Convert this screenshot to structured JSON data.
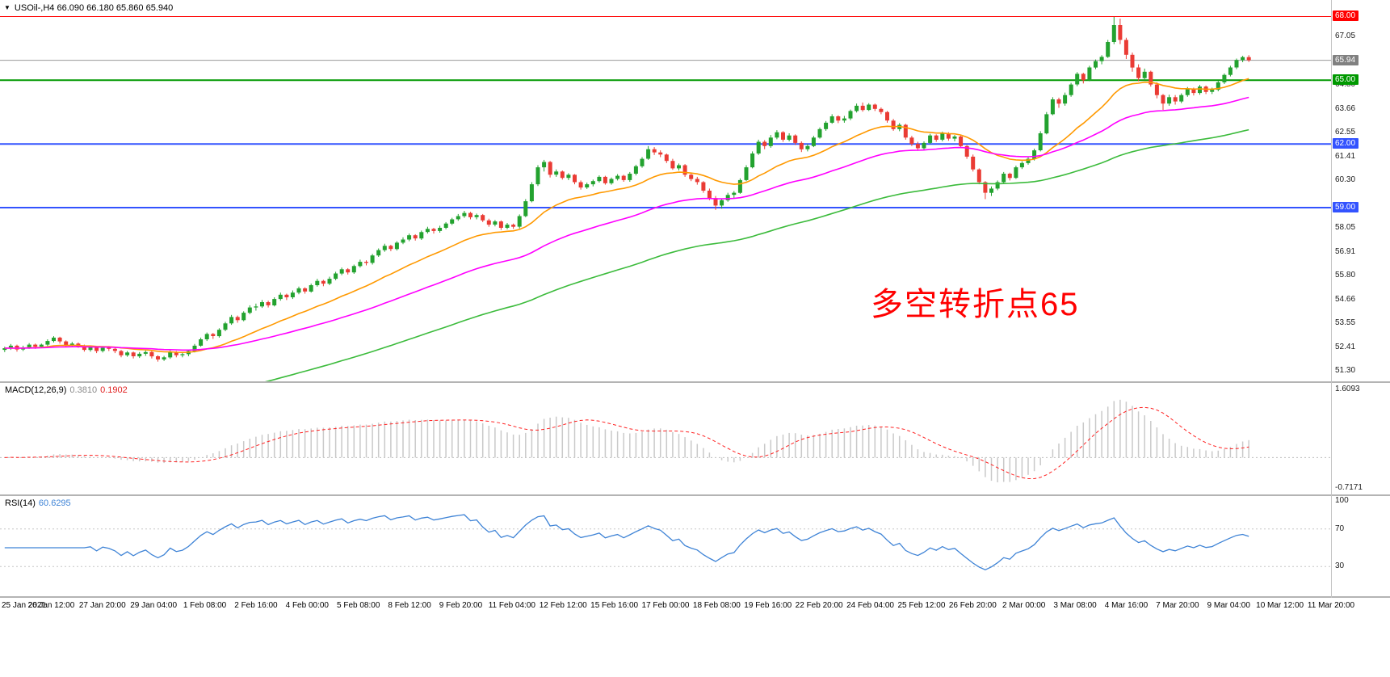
{
  "window": {
    "collapse_icon": "▼"
  },
  "header": {
    "symbol_title": "USOil-,H4 66.090 66.180 65.860 65.940"
  },
  "main_chart": {
    "annotation_text": "多空转折点65",
    "annotation_color": "#FF0000",
    "y_min": 51.05,
    "y_max": 68.55,
    "ticks": [
      {
        "v": 67.05,
        "t": "67.05"
      },
      {
        "v": 64.8,
        "t": "64.80"
      },
      {
        "v": 63.66,
        "t": "63.66"
      },
      {
        "v": 62.55,
        "t": "62.55"
      },
      {
        "v": 61.41,
        "t": "61.41"
      },
      {
        "v": 60.3,
        "t": "60.30"
      },
      {
        "v": 58.05,
        "t": "58.05"
      },
      {
        "v": 56.91,
        "t": "56.91"
      },
      {
        "v": 55.8,
        "t": "55.80"
      },
      {
        "v": 54.66,
        "t": "54.66"
      },
      {
        "v": 53.55,
        "t": "53.55"
      },
      {
        "v": 52.41,
        "t": "52.41"
      },
      {
        "v": 51.3,
        "t": "51.30"
      }
    ],
    "hlines": [
      {
        "value": 68.0,
        "label": "68.00",
        "color": "#FF0000",
        "width": 1
      },
      {
        "value": 65.0,
        "label": "65.00",
        "color": "#009900",
        "width": 2
      },
      {
        "value": 62.0,
        "label": "62.00",
        "color": "#3353FF",
        "width": 2
      },
      {
        "value": 59.0,
        "label": "59.00",
        "color": "#3353FF",
        "width": 2
      }
    ],
    "bid": {
      "v": 65.94,
      "t": "65.94",
      "line_color": "#9a9a9a",
      "bg": "#808080"
    },
    "candle_colors": {
      "bull": "#23a22f",
      "bear": "#ea3b34"
    },
    "moving_averages": [
      {
        "name": "ma-fast",
        "period": 20,
        "seed": null,
        "color": "#ff9900"
      },
      {
        "name": "ma-mid",
        "period": 50,
        "seed": null,
        "color": "#ff00ff"
      },
      {
        "name": "ma-slow",
        "period": 100,
        "seed": 48.0,
        "color": "#3cbb3c"
      }
    ]
  },
  "macd_panel": {
    "label": "MACD(12,26,9)",
    "main_value": "0.3810",
    "signal_value": "0.1902",
    "range_max": 1.6093,
    "range_min": -0.7171,
    "max_label": "1.6093",
    "min_label": "-0.7171",
    "histogram_color": "#c9c9c9",
    "signal_color": "#ff2222",
    "params": {
      "fast": 12,
      "slow": 26,
      "signal": 9
    }
  },
  "rsi_panel": {
    "label": "RSI(14)",
    "value": "60.6295",
    "period": 14,
    "line_color": "#3e83d6",
    "levels": [
      {
        "v": 100,
        "t": "100",
        "line": false
      },
      {
        "v": 70,
        "t": "70",
        "line": true
      },
      {
        "v": 30,
        "t": "30",
        "line": true
      }
    ]
  },
  "time_axis": {
    "labels": [
      "25 Jan 2021",
      "26 Jan 12:00",
      "27 Jan 20:00",
      "29 Jan 04:00",
      "1 Feb 08:00",
      "2 Feb 16:00",
      "4 Feb 00:00",
      "5 Feb 08:00",
      "8 Feb 12:00",
      "9 Feb 20:00",
      "11 Feb 04:00",
      "12 Feb 12:00",
      "15 Feb 16:00",
      "17 Feb 00:00",
      "18 Feb 08:00",
      "19 Feb 16:00",
      "22 Feb 20:00",
      "24 Feb 04:00",
      "25 Feb 12:00",
      "26 Feb 20:00",
      "2 Mar 00:00",
      "3 Mar 08:00",
      "4 Mar 16:00",
      "7 Mar 20:00",
      "9 Mar 04:00",
      "10 Mar 12:00",
      "11 Mar 20:00"
    ]
  },
  "chart_data": {
    "type": "candlestick",
    "symbol": "USOil-",
    "timeframe": "H4",
    "title": "USOil-,H4 66.090 66.180 65.860 65.940",
    "current_bar": {
      "open": 66.09,
      "high": 66.18,
      "low": 65.86,
      "close": 65.94
    },
    "visible_range": {
      "price_low": 51.3,
      "price_high": 68.0,
      "time_start": "25 Jan 2021",
      "time_end": "11 Mar 20:00"
    },
    "horizontal_levels": [
      68.0,
      65.0,
      62.0,
      59.0
    ],
    "indicators": [
      {
        "name": "MACD",
        "params": [
          12,
          26,
          9
        ],
        "values": [
          0.381,
          0.1902
        ],
        "scale": [
          1.6093,
          -0.7171
        ]
      },
      {
        "name": "RSI",
        "params": [
          14
        ],
        "value": 60.6295,
        "levels": [
          30,
          70
        ]
      }
    ],
    "annotation": "多空转折点65",
    "candle_format": [
      "open",
      "high",
      "low",
      "close"
    ],
    "candles": [
      [
        52.3,
        52.45,
        52.2,
        52.38
      ],
      [
        52.38,
        52.58,
        52.3,
        52.5
      ],
      [
        52.5,
        52.55,
        52.22,
        52.32
      ],
      [
        52.32,
        52.5,
        52.25,
        52.42
      ],
      [
        52.42,
        52.62,
        52.35,
        52.55
      ],
      [
        52.55,
        52.6,
        52.35,
        52.45
      ],
      [
        52.45,
        52.6,
        52.38,
        52.55
      ],
      [
        52.55,
        52.8,
        52.48,
        52.72
      ],
      [
        52.72,
        52.95,
        52.65,
        52.88
      ],
      [
        52.88,
        52.92,
        52.6,
        52.7
      ],
      [
        52.7,
        52.75,
        52.42,
        52.52
      ],
      [
        52.52,
        52.68,
        52.45,
        52.6
      ],
      [
        52.6,
        52.65,
        52.4,
        52.48
      ],
      [
        52.48,
        52.55,
        52.22,
        52.3
      ],
      [
        52.3,
        52.5,
        52.22,
        52.42
      ],
      [
        52.42,
        52.45,
        52.15,
        52.25
      ],
      [
        52.25,
        52.48,
        52.18,
        52.4
      ],
      [
        52.4,
        52.48,
        52.25,
        52.35
      ],
      [
        52.35,
        52.42,
        52.15,
        52.25
      ],
      [
        52.25,
        52.3,
        51.95,
        52.05
      ],
      [
        52.05,
        52.25,
        51.98,
        52.18
      ],
      [
        52.18,
        52.22,
        51.9,
        52.0
      ],
      [
        52.0,
        52.2,
        51.92,
        52.12
      ],
      [
        52.12,
        52.28,
        52.02,
        52.2
      ],
      [
        52.2,
        52.25,
        51.9,
        52.0
      ],
      [
        52.0,
        52.05,
        51.75,
        51.85
      ],
      [
        51.85,
        52.02,
        51.78,
        51.95
      ],
      [
        51.95,
        52.28,
        51.88,
        52.2
      ],
      [
        52.2,
        52.25,
        51.95,
        52.05
      ],
      [
        52.05,
        52.18,
        51.95,
        52.1
      ],
      [
        52.1,
        52.3,
        52.0,
        52.25
      ],
      [
        52.25,
        52.58,
        52.18,
        52.5
      ],
      [
        52.5,
        52.88,
        52.45,
        52.8
      ],
      [
        52.8,
        53.12,
        52.72,
        53.05
      ],
      [
        53.05,
        53.1,
        52.82,
        52.95
      ],
      [
        52.95,
        53.32,
        52.88,
        53.25
      ],
      [
        53.25,
        53.62,
        53.18,
        53.55
      ],
      [
        53.55,
        53.95,
        53.48,
        53.85
      ],
      [
        53.85,
        53.92,
        53.58,
        53.7
      ],
      [
        53.7,
        54.12,
        53.65,
        54.05
      ],
      [
        54.05,
        54.4,
        53.98,
        54.3
      ],
      [
        54.3,
        54.48,
        54.15,
        54.35
      ],
      [
        54.35,
        54.65,
        54.28,
        54.55
      ],
      [
        54.55,
        54.62,
        54.3,
        54.4
      ],
      [
        54.4,
        54.78,
        54.35,
        54.7
      ],
      [
        54.7,
        55.0,
        54.62,
        54.9
      ],
      [
        54.9,
        54.95,
        54.65,
        54.78
      ],
      [
        54.78,
        55.1,
        54.7,
        55.0
      ],
      [
        55.0,
        55.28,
        54.92,
        55.2
      ],
      [
        55.2,
        55.25,
        54.95,
        55.05
      ],
      [
        55.05,
        55.42,
        55.0,
        55.35
      ],
      [
        55.35,
        55.65,
        55.28,
        55.55
      ],
      [
        55.55,
        55.6,
        55.3,
        55.42
      ],
      [
        55.42,
        55.75,
        55.35,
        55.65
      ],
      [
        55.65,
        55.98,
        55.58,
        55.9
      ],
      [
        55.9,
        56.18,
        55.82,
        56.1
      ],
      [
        56.1,
        56.15,
        55.85,
        55.95
      ],
      [
        55.95,
        56.32,
        55.88,
        56.25
      ],
      [
        56.25,
        56.55,
        56.18,
        56.45
      ],
      [
        56.45,
        56.52,
        56.28,
        56.4
      ],
      [
        56.4,
        56.82,
        56.32,
        56.75
      ],
      [
        56.75,
        57.08,
        56.68,
        57.0
      ],
      [
        57.0,
        57.3,
        56.92,
        57.2
      ],
      [
        57.2,
        57.25,
        56.95,
        57.05
      ],
      [
        57.05,
        57.42,
        56.98,
        57.35
      ],
      [
        57.35,
        57.6,
        57.28,
        57.5
      ],
      [
        57.5,
        57.78,
        57.42,
        57.7
      ],
      [
        57.7,
        57.75,
        57.45,
        57.55
      ],
      [
        57.55,
        57.92,
        57.48,
        57.85
      ],
      [
        57.85,
        58.1,
        57.78,
        58.0
      ],
      [
        58.0,
        58.05,
        57.78,
        57.9
      ],
      [
        57.9,
        58.15,
        57.82,
        58.05
      ],
      [
        58.05,
        58.32,
        57.98,
        58.25
      ],
      [
        58.25,
        58.52,
        58.18,
        58.45
      ],
      [
        58.45,
        58.7,
        58.38,
        58.6
      ],
      [
        58.6,
        58.85,
        58.52,
        58.75
      ],
      [
        58.75,
        58.8,
        58.45,
        58.55
      ],
      [
        58.55,
        58.72,
        58.45,
        58.65
      ],
      [
        58.65,
        58.7,
        58.32,
        58.4
      ],
      [
        58.4,
        58.48,
        58.1,
        58.2
      ],
      [
        58.2,
        58.42,
        58.12,
        58.35
      ],
      [
        58.35,
        58.4,
        57.95,
        58.05
      ],
      [
        58.05,
        58.28,
        57.98,
        58.2
      ],
      [
        58.2,
        58.25,
        58.0,
        58.1
      ],
      [
        58.1,
        58.68,
        58.02,
        58.6
      ],
      [
        58.6,
        59.4,
        58.55,
        59.3
      ],
      [
        59.3,
        60.2,
        59.25,
        60.1
      ],
      [
        60.1,
        61.0,
        60.02,
        60.9
      ],
      [
        60.9,
        61.25,
        60.7,
        61.15
      ],
      [
        61.15,
        61.2,
        60.42,
        60.55
      ],
      [
        60.55,
        60.8,
        60.45,
        60.7
      ],
      [
        60.7,
        60.75,
        60.32,
        60.4
      ],
      [
        60.4,
        60.62,
        60.3,
        60.55
      ],
      [
        60.55,
        60.58,
        60.1,
        60.2
      ],
      [
        60.2,
        60.28,
        59.85,
        59.95
      ],
      [
        59.95,
        60.18,
        59.88,
        60.1
      ],
      [
        60.1,
        60.32,
        60.0,
        60.25
      ],
      [
        60.25,
        60.52,
        60.18,
        60.45
      ],
      [
        60.45,
        60.5,
        60.08,
        60.15
      ],
      [
        60.15,
        60.42,
        60.08,
        60.35
      ],
      [
        60.35,
        60.58,
        60.28,
        60.5
      ],
      [
        60.5,
        60.55,
        60.22,
        60.3
      ],
      [
        60.3,
        60.68,
        60.22,
        60.6
      ],
      [
        60.6,
        61.02,
        60.52,
        60.95
      ],
      [
        60.95,
        61.38,
        60.88,
        61.3
      ],
      [
        61.3,
        61.9,
        61.25,
        61.75
      ],
      [
        61.75,
        61.85,
        61.48,
        61.6
      ],
      [
        61.6,
        61.7,
        61.38,
        61.5
      ],
      [
        61.5,
        61.55,
        61.1,
        61.2
      ],
      [
        61.2,
        61.3,
        60.78,
        60.85
      ],
      [
        60.85,
        61.08,
        60.75,
        61.0
      ],
      [
        61.0,
        61.05,
        60.45,
        60.55
      ],
      [
        60.55,
        60.62,
        60.25,
        60.35
      ],
      [
        60.35,
        60.45,
        60.08,
        60.2
      ],
      [
        60.2,
        60.25,
        59.7,
        59.8
      ],
      [
        59.8,
        59.9,
        59.35,
        59.45
      ],
      [
        59.45,
        59.55,
        58.9,
        59.1
      ],
      [
        59.1,
        59.42,
        58.95,
        59.35
      ],
      [
        59.35,
        59.7,
        59.28,
        59.6
      ],
      [
        59.6,
        59.78,
        59.45,
        59.7
      ],
      [
        59.7,
        60.38,
        59.65,
        60.3
      ],
      [
        60.3,
        61.0,
        60.25,
        60.9
      ],
      [
        60.9,
        61.65,
        60.85,
        61.55
      ],
      [
        61.55,
        62.2,
        61.48,
        62.1
      ],
      [
        62.1,
        62.18,
        61.75,
        61.9
      ],
      [
        61.9,
        62.42,
        61.82,
        62.3
      ],
      [
        62.3,
        62.65,
        62.22,
        62.55
      ],
      [
        62.55,
        62.6,
        62.1,
        62.2
      ],
      [
        62.2,
        62.5,
        62.12,
        62.4
      ],
      [
        62.4,
        62.45,
        61.95,
        62.05
      ],
      [
        62.05,
        62.12,
        61.62,
        61.75
      ],
      [
        61.75,
        62.0,
        61.65,
        61.9
      ],
      [
        61.9,
        62.38,
        61.85,
        62.3
      ],
      [
        62.3,
        62.78,
        62.25,
        62.7
      ],
      [
        62.7,
        63.08,
        62.62,
        63.0
      ],
      [
        63.0,
        63.4,
        62.95,
        63.3
      ],
      [
        63.3,
        63.35,
        62.98,
        63.1
      ],
      [
        63.1,
        63.32,
        63.0,
        63.2
      ],
      [
        63.2,
        63.62,
        63.12,
        63.55
      ],
      [
        63.55,
        63.9,
        63.48,
        63.8
      ],
      [
        63.8,
        63.95,
        63.52,
        63.6
      ],
      [
        63.6,
        63.92,
        63.55,
        63.85
      ],
      [
        63.85,
        63.9,
        63.55,
        63.65
      ],
      [
        63.65,
        63.72,
        63.4,
        63.5
      ],
      [
        63.5,
        63.55,
        63.0,
        63.1
      ],
      [
        63.1,
        63.18,
        62.62,
        62.7
      ],
      [
        62.7,
        62.98,
        62.6,
        62.9
      ],
      [
        62.9,
        62.95,
        62.2,
        62.3
      ],
      [
        62.3,
        62.38,
        61.9,
        62.0
      ],
      [
        62.0,
        62.1,
        61.68,
        61.8
      ],
      [
        61.8,
        62.12,
        61.72,
        62.05
      ],
      [
        62.05,
        62.48,
        62.0,
        62.4
      ],
      [
        62.4,
        62.45,
        62.1,
        62.2
      ],
      [
        62.2,
        62.58,
        62.12,
        62.5
      ],
      [
        62.5,
        62.55,
        62.15,
        62.25
      ],
      [
        62.25,
        62.42,
        62.12,
        62.35
      ],
      [
        62.35,
        62.4,
        61.8,
        61.9
      ],
      [
        61.9,
        61.95,
        61.3,
        61.4
      ],
      [
        61.4,
        61.5,
        60.7,
        60.8
      ],
      [
        60.8,
        60.85,
        60.1,
        60.2
      ],
      [
        60.2,
        60.25,
        59.4,
        59.7
      ],
      [
        59.7,
        60.0,
        59.55,
        59.9
      ],
      [
        59.9,
        60.28,
        59.82,
        60.2
      ],
      [
        60.2,
        60.68,
        60.15,
        60.6
      ],
      [
        60.6,
        60.65,
        60.28,
        60.4
      ],
      [
        60.4,
        60.98,
        60.35,
        60.9
      ],
      [
        60.9,
        61.18,
        60.82,
        61.1
      ],
      [
        61.1,
        61.4,
        61.02,
        61.3
      ],
      [
        61.3,
        61.78,
        61.22,
        61.7
      ],
      [
        61.7,
        62.6,
        61.65,
        62.5
      ],
      [
        62.5,
        63.5,
        62.45,
        63.4
      ],
      [
        63.4,
        64.2,
        63.35,
        64.1
      ],
      [
        64.1,
        64.18,
        63.7,
        63.9
      ],
      [
        63.9,
        64.42,
        63.8,
        64.3
      ],
      [
        64.3,
        64.88,
        64.22,
        64.8
      ],
      [
        64.8,
        65.38,
        64.72,
        65.3
      ],
      [
        65.3,
        65.35,
        64.85,
        65.0
      ],
      [
        65.0,
        65.68,
        64.95,
        65.6
      ],
      [
        65.6,
        65.98,
        65.52,
        65.9
      ],
      [
        65.9,
        66.18,
        65.75,
        66.1
      ],
      [
        66.1,
        66.9,
        66.05,
        66.8
      ],
      [
        66.8,
        67.98,
        66.7,
        67.6
      ],
      [
        67.6,
        67.9,
        66.7,
        66.9
      ],
      [
        66.9,
        67.0,
        66.0,
        66.2
      ],
      [
        66.2,
        66.3,
        65.4,
        65.6
      ],
      [
        65.6,
        65.75,
        64.95,
        65.1
      ],
      [
        65.1,
        65.55,
        65.0,
        65.4
      ],
      [
        65.4,
        65.45,
        64.7,
        64.8
      ],
      [
        64.8,
        64.9,
        64.15,
        64.3
      ],
      [
        64.3,
        64.35,
        63.6,
        63.9
      ],
      [
        63.9,
        64.32,
        63.8,
        64.2
      ],
      [
        64.2,
        64.3,
        63.85,
        64.0
      ],
      [
        64.0,
        64.38,
        63.92,
        64.3
      ],
      [
        64.3,
        64.68,
        64.22,
        64.6
      ],
      [
        64.6,
        64.65,
        64.28,
        64.4
      ],
      [
        64.4,
        64.78,
        64.32,
        64.7
      ],
      [
        64.7,
        64.75,
        64.35,
        64.45
      ],
      [
        64.45,
        64.65,
        64.35,
        64.55
      ],
      [
        64.55,
        64.98,
        64.48,
        64.9
      ],
      [
        64.9,
        65.32,
        64.82,
        65.25
      ],
      [
        65.25,
        65.68,
        65.18,
        65.6
      ],
      [
        65.6,
        66.02,
        65.52,
        65.95
      ],
      [
        65.95,
        66.15,
        65.85,
        66.09
      ],
      [
        66.09,
        66.18,
        65.86,
        65.94
      ]
    ]
  }
}
